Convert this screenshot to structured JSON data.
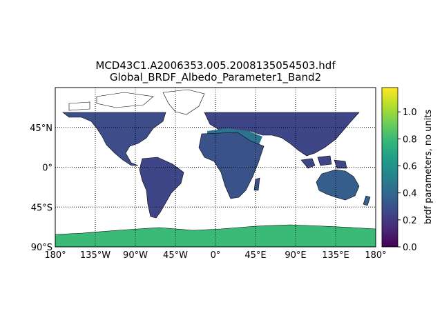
{
  "title_line1": "MCD43C1.A2006353.005.2008135054503.hdf",
  "title_line2": "Global_BRDF_Albedo_Parameter1_Band2",
  "map": {
    "projection": "equirectangular",
    "lon_range": [
      -180,
      180
    ],
    "lat_range": [
      -90,
      90
    ],
    "graticule": {
      "style": "dotted",
      "lon_step": 45,
      "lat_step": 45
    },
    "background_color": "#ffffff",
    "coastline_color": "#000000",
    "no_data_note": "data absent north of ~60°N and over oceans"
  },
  "lat_ticks": [
    {
      "value": 45,
      "label": "45°N"
    },
    {
      "value": 0,
      "label": "0°"
    },
    {
      "value": -45,
      "label": "45°S"
    },
    {
      "value": -90,
      "label": "90°S"
    }
  ],
  "lon_ticks": [
    {
      "value": -180,
      "label": "180°"
    },
    {
      "value": -135,
      "label": "135°W"
    },
    {
      "value": -90,
      "label": "90°W"
    },
    {
      "value": -45,
      "label": "45°W"
    },
    {
      "value": 0,
      "label": "0°"
    },
    {
      "value": 45,
      "label": "45°E"
    },
    {
      "value": 90,
      "label": "90°E"
    },
    {
      "value": 135,
      "label": "135°E"
    },
    {
      "value": 180,
      "label": "180°"
    }
  ],
  "colorbar": {
    "label": "brdf parameters, no units",
    "colormap": "viridis",
    "range": [
      0.0,
      1.18
    ],
    "ticks": [
      "0.0",
      "0.2",
      "0.4",
      "0.6",
      "0.8",
      "1.0"
    ],
    "colors": [
      "#440154",
      "#482878",
      "#3e4989",
      "#31688e",
      "#26828e",
      "#1f9e89",
      "#35b779",
      "#6ece58",
      "#b5de2b",
      "#fde725"
    ]
  },
  "regions": [
    {
      "name": "north-america",
      "value": 0.28
    },
    {
      "name": "south-america",
      "value": 0.25
    },
    {
      "name": "africa",
      "value": 0.3
    },
    {
      "name": "europe-asia",
      "value": 0.25
    },
    {
      "name": "arabia-sahara",
      "value": 0.45
    },
    {
      "name": "australia",
      "value": 0.35
    },
    {
      "name": "antarctica",
      "value": 0.8
    }
  ]
}
